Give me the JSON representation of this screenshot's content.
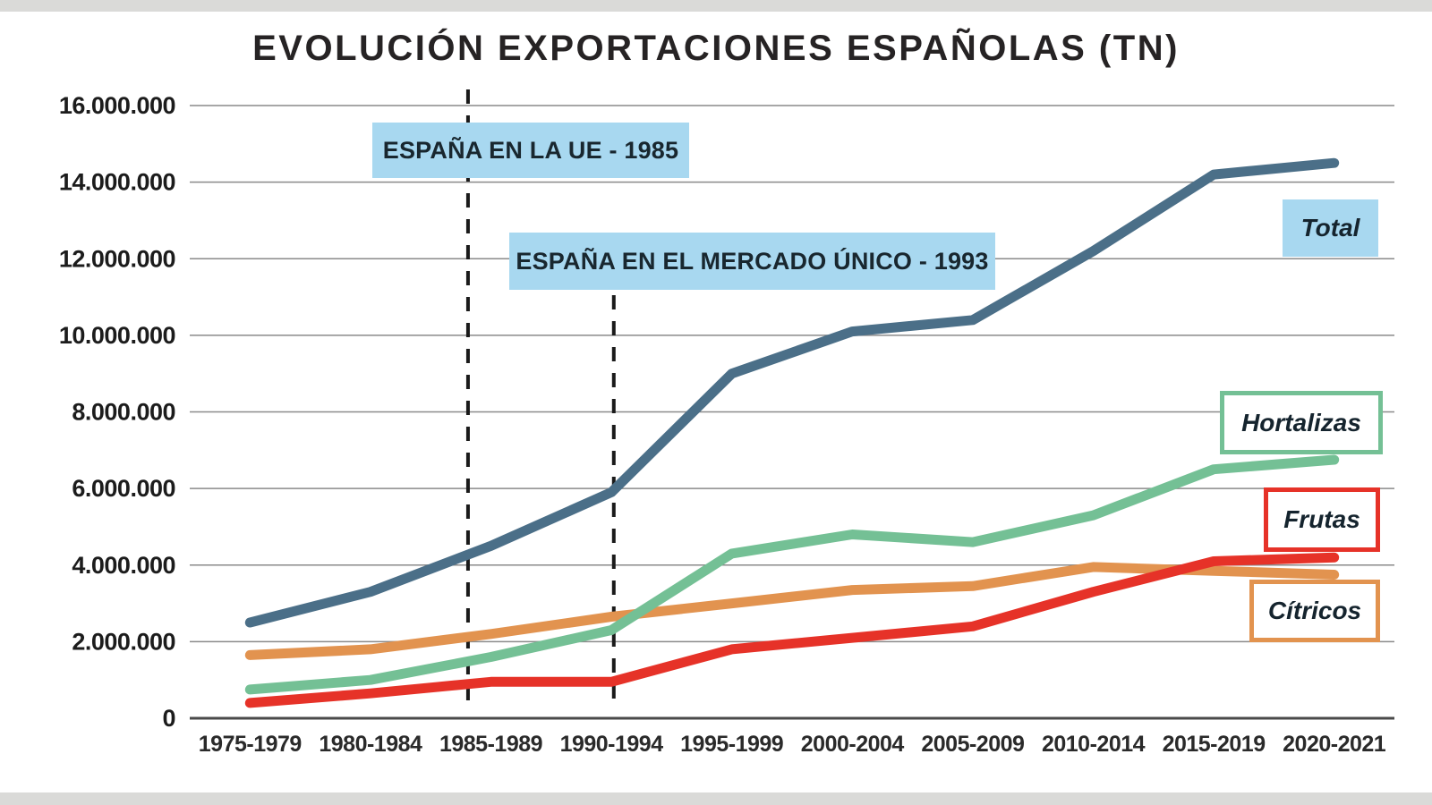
{
  "page": {
    "background": "#ffffff",
    "frame_color": "#dadad8"
  },
  "chart_data": {
    "type": "line",
    "title": "EVOLUCIÓN EXPORTACIONES ESPAÑOLAS (TN)",
    "title_color": "#262324",
    "grid": true,
    "gridline_color": "#8a8a8a",
    "axis_line_color": "#4a4a4a",
    "categories": [
      "1975-1979",
      "1980-1984",
      "1985-1989",
      "1990-1994",
      "1995-1999",
      "2000-2004",
      "2005-2009",
      "2010-2014",
      "2015-2019",
      "2020-2021"
    ],
    "y_axis": {
      "min": 0,
      "max": 16000000,
      "step": 2000000,
      "tick_labels": [
        "0",
        "2.000.000",
        "4.000.000",
        "6.000.000",
        "8.000.000",
        "10.000.000",
        "12.000.000",
        "14.000.000",
        "16.000.000"
      ]
    },
    "series": [
      {
        "name": "Total",
        "color": "#4b6f88",
        "values": [
          2500000,
          3300000,
          4500000,
          5900000,
          9000000,
          10100000,
          10400000,
          12200000,
          14200000,
          14500000
        ]
      },
      {
        "name": "Hortalizas",
        "color": "#74c095",
        "values": [
          750000,
          1000000,
          1600000,
          2300000,
          4300000,
          4800000,
          4600000,
          5300000,
          6500000,
          6750000
        ]
      },
      {
        "name": "Frutas",
        "color": "#e63228",
        "values": [
          400000,
          650000,
          950000,
          950000,
          1800000,
          2100000,
          2400000,
          3300000,
          4100000,
          4200000
        ]
      },
      {
        "name": "Cítricos",
        "color": "#e2934f",
        "values": [
          1650000,
          1800000,
          2200000,
          2650000,
          3000000,
          3350000,
          3450000,
          3950000,
          3850000,
          3750000
        ]
      }
    ],
    "annotations": [
      {
        "label": "ESPAÑA EN LA UE - 1985",
        "x_index": 1.81
      },
      {
        "label": "ESPAÑA EN EL MERCADO ÚNICO - 1993",
        "x_index": 3.02
      }
    ],
    "annotation_box_color": "#a8d8f0",
    "annotation_line_color": "#1a1a1a",
    "legend_position": "right",
    "legend": [
      {
        "label": "Total",
        "style": "filled",
        "color": "#a8d8f0"
      },
      {
        "label": "Hortalizas",
        "style": "outlined",
        "color": "#74c095"
      },
      {
        "label": "Frutas",
        "style": "outlined",
        "color": "#e63228"
      },
      {
        "label": "Cítricos",
        "style": "outlined",
        "color": "#e2934f"
      }
    ]
  }
}
